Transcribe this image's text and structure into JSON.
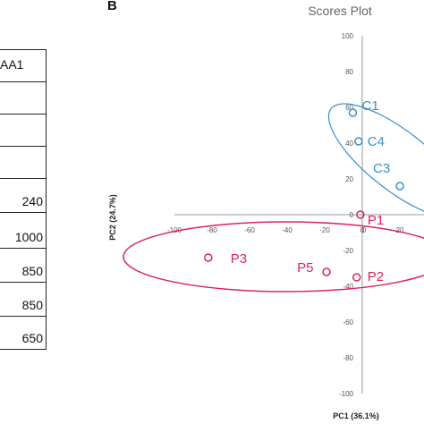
{
  "panel_letter": "B",
  "table": {
    "header": "AA1",
    "values": [
      "",
      "",
      "",
      "240",
      "1000",
      "850",
      "850",
      "650"
    ]
  },
  "colors": {
    "control": "#3a8fd0",
    "patient": "#d9245b",
    "axis": "#999999"
  },
  "chart_data": {
    "type": "scatter",
    "title": "Scores Plot",
    "xlabel": "PC1 (36.1%)",
    "ylabel": "PC2 (24.7%)",
    "xlim": [
      -100,
      60
    ],
    "ylim": [
      -100,
      100
    ],
    "x_ticks": [
      -100,
      -80,
      -60,
      -40,
      -20,
      0,
      20
    ],
    "y_ticks": [
      100,
      80,
      60,
      40,
      20,
      0,
      -20,
      -40,
      -60,
      -80,
      -100
    ],
    "grid": false,
    "series": [
      {
        "group": "control",
        "points": [
          {
            "label": "C1",
            "x": -5,
            "y": 57
          },
          {
            "label": "C4",
            "x": -2,
            "y": 41
          },
          {
            "label": "C3",
            "x": 20,
            "y": 16
          }
        ]
      },
      {
        "group": "patient",
        "points": [
          {
            "label": "P1",
            "x": -1,
            "y": 0
          },
          {
            "label": "P3",
            "x": -82,
            "y": -24
          },
          {
            "label": "P5",
            "x": -19,
            "y": -32
          },
          {
            "label": "P2",
            "x": -3,
            "y": -35
          }
        ]
      }
    ]
  }
}
